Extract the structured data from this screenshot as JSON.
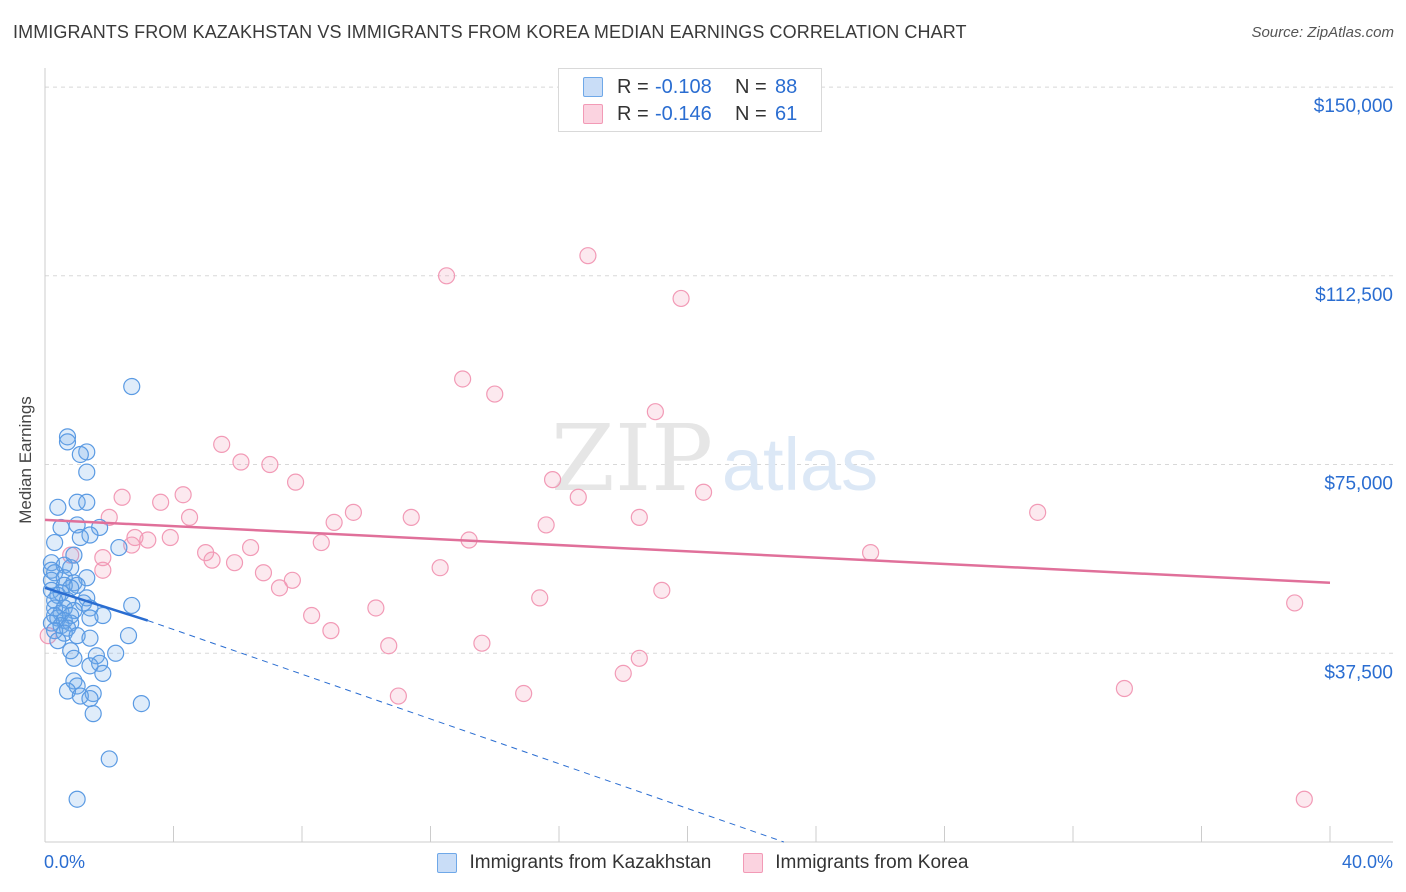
{
  "header": {
    "title": "IMMIGRANTS FROM KAZAKHSTAN VS IMMIGRANTS FROM KOREA MEDIAN EARNINGS CORRELATION CHART",
    "source": "Source: ZipAtlas.com"
  },
  "colors": {
    "kazakhstan": "#6fa8e8",
    "kazakhstan_line": "#2a6dd1",
    "korea": "#f29ab6",
    "korea_line": "#e0709a",
    "axis_text": "#2a6dd1"
  },
  "legend": {
    "r_label": "R =",
    "n_label": "N =",
    "kazakhstan": {
      "r": "-0.108",
      "n": "88"
    },
    "korea": {
      "r": "-0.146",
      "n": "61"
    }
  },
  "watermark": {
    "zip": "ZIP",
    "atlas": "atlas"
  },
  "chart_data": {
    "type": "scatter",
    "title": "IMMIGRANTS FROM KAZAKHSTAN VS IMMIGRANTS FROM KOREA MEDIAN EARNINGS CORRELATION CHART",
    "xlabel": "",
    "ylabel": "Median Earnings",
    "xlim": [
      0,
      40
    ],
    "ylim": [
      0,
      152000
    ],
    "x_tick_labels": [
      "0.0%",
      "40.0%"
    ],
    "y_ticks": [
      37500,
      75000,
      112500,
      150000
    ],
    "y_tick_labels": [
      "$37,500",
      "$75,000",
      "$112,500",
      "$150,000"
    ],
    "grid": true,
    "legend_position": "top-center",
    "series": [
      {
        "name": "Immigrants from Kazakhstan",
        "points": [
          [
            2.7,
            90500
          ],
          [
            0.7,
            80500
          ],
          [
            0.7,
            79500
          ],
          [
            1.3,
            77500
          ],
          [
            1.1,
            77000
          ],
          [
            1.3,
            73500
          ],
          [
            0.4,
            66500
          ],
          [
            1.0,
            67500
          ],
          [
            1.3,
            67500
          ],
          [
            0.5,
            62500
          ],
          [
            1.0,
            63000
          ],
          [
            1.7,
            62500
          ],
          [
            1.4,
            61000
          ],
          [
            1.1,
            60500
          ],
          [
            0.3,
            59500
          ],
          [
            2.3,
            58500
          ],
          [
            0.9,
            57000
          ],
          [
            0.2,
            55500
          ],
          [
            0.6,
            55000
          ],
          [
            0.8,
            54500
          ],
          [
            0.2,
            54000
          ],
          [
            0.3,
            53500
          ],
          [
            0.6,
            52500
          ],
          [
            1.3,
            52500
          ],
          [
            0.2,
            52000
          ],
          [
            0.9,
            51500
          ],
          [
            1.0,
            51000
          ],
          [
            0.6,
            51000
          ],
          [
            0.8,
            50500
          ],
          [
            0.2,
            50000
          ],
          [
            0.5,
            49500
          ],
          [
            0.4,
            49000
          ],
          [
            1.3,
            48500
          ],
          [
            0.3,
            48000
          ],
          [
            0.7,
            48000
          ],
          [
            1.2,
            47500
          ],
          [
            2.7,
            47000
          ],
          [
            0.3,
            46500
          ],
          [
            0.6,
            46500
          ],
          [
            1.4,
            46500
          ],
          [
            0.9,
            46000
          ],
          [
            0.5,
            45500
          ],
          [
            0.3,
            45000
          ],
          [
            0.8,
            45000
          ],
          [
            1.8,
            45000
          ],
          [
            0.4,
            44500
          ],
          [
            1.4,
            44500
          ],
          [
            0.6,
            44000
          ],
          [
            0.2,
            43500
          ],
          [
            0.8,
            43500
          ],
          [
            0.5,
            43000
          ],
          [
            0.7,
            42500
          ],
          [
            0.3,
            42000
          ],
          [
            0.6,
            41500
          ],
          [
            1.0,
            41000
          ],
          [
            2.6,
            41000
          ],
          [
            1.4,
            40500
          ],
          [
            0.4,
            40000
          ],
          [
            0.8,
            38000
          ],
          [
            2.2,
            37500
          ],
          [
            1.6,
            37000
          ],
          [
            0.9,
            36500
          ],
          [
            1.7,
            35500
          ],
          [
            1.4,
            35000
          ],
          [
            1.8,
            33500
          ],
          [
            0.9,
            32000
          ],
          [
            1.0,
            31000
          ],
          [
            0.7,
            30000
          ],
          [
            1.5,
            29500
          ],
          [
            1.1,
            29000
          ],
          [
            1.4,
            28500
          ],
          [
            3.0,
            27500
          ],
          [
            1.5,
            25500
          ],
          [
            2.0,
            16500
          ],
          [
            1.0,
            8500
          ]
        ]
      },
      {
        "name": "Immigrants from Korea",
        "points": [
          [
            16.9,
            116500
          ],
          [
            12.5,
            112500
          ],
          [
            19.8,
            108000
          ],
          [
            13.0,
            92000
          ],
          [
            14.0,
            89000
          ],
          [
            19.0,
            85500
          ],
          [
            5.5,
            79000
          ],
          [
            6.1,
            75500
          ],
          [
            7.0,
            75000
          ],
          [
            7.8,
            71500
          ],
          [
            15.8,
            72000
          ],
          [
            2.4,
            68500
          ],
          [
            4.3,
            69000
          ],
          [
            3.6,
            67500
          ],
          [
            16.6,
            68500
          ],
          [
            20.5,
            69500
          ],
          [
            30.9,
            65500
          ],
          [
            9.6,
            65500
          ],
          [
            2.0,
            64500
          ],
          [
            4.5,
            64500
          ],
          [
            11.4,
            64500
          ],
          [
            18.5,
            64500
          ],
          [
            9.0,
            63500
          ],
          [
            15.6,
            63000
          ],
          [
            2.8,
            60500
          ],
          [
            3.9,
            60500
          ],
          [
            13.2,
            60000
          ],
          [
            8.6,
            59500
          ],
          [
            3.2,
            60000
          ],
          [
            2.7,
            59000
          ],
          [
            6.4,
            58500
          ],
          [
            5.0,
            57500
          ],
          [
            25.7,
            57500
          ],
          [
            0.8,
            57000
          ],
          [
            1.8,
            56500
          ],
          [
            5.2,
            56000
          ],
          [
            5.9,
            55500
          ],
          [
            12.3,
            54500
          ],
          [
            1.8,
            54000
          ],
          [
            6.8,
            53500
          ],
          [
            7.7,
            52000
          ],
          [
            7.3,
            50500
          ],
          [
            19.2,
            50000
          ],
          [
            15.4,
            48500
          ],
          [
            10.3,
            46500
          ],
          [
            8.3,
            45000
          ],
          [
            38.9,
            47500
          ],
          [
            8.9,
            42000
          ],
          [
            0.1,
            41000
          ],
          [
            13.6,
            39500
          ],
          [
            10.7,
            39000
          ],
          [
            18.5,
            36500
          ],
          [
            18.0,
            33500
          ],
          [
            33.6,
            30500
          ],
          [
            11.0,
            29000
          ],
          [
            14.9,
            29500
          ],
          [
            39.2,
            8500
          ]
        ]
      }
    ],
    "trend_lines": [
      {
        "series": "Immigrants from Kazakhstan",
        "solid": [
          [
            0.0,
            50500
          ],
          [
            3.2,
            44000
          ]
        ],
        "dashed": [
          [
            3.2,
            44000
          ],
          [
            23.0,
            0
          ]
        ]
      },
      {
        "series": "Immigrants from Korea",
        "solid": [
          [
            0.0,
            64000
          ],
          [
            40.0,
            51500
          ]
        ]
      }
    ]
  }
}
